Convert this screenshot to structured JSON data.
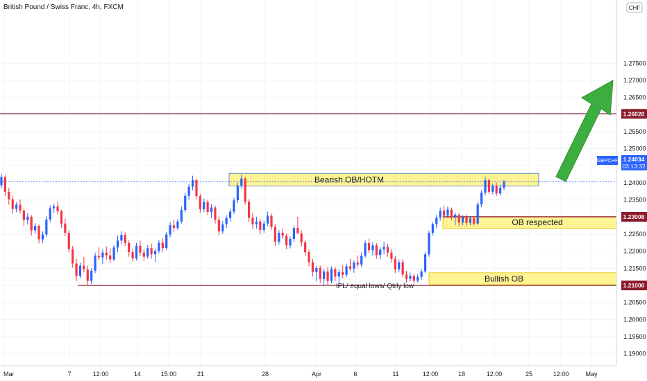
{
  "chart_data": {
    "type": "candlestick",
    "title": "British Pound / Swiss Franc, 4h, FXCM",
    "currency_badge": "CHF",
    "symbol": "GBPCHF",
    "last_price": "1.24034",
    "countdown": "03:13:32",
    "ylim": [
      1.1865,
      1.2935
    ],
    "y_ticks": [
      "1.19000",
      "1.19500",
      "1.20000",
      "1.20500",
      "1.21000",
      "1.21500",
      "1.22000",
      "1.22500",
      "1.23000",
      "1.23500",
      "1.24000",
      "1.24500",
      "1.25000",
      "1.25500",
      "1.26000",
      "1.26500",
      "1.27000",
      "1.27500"
    ],
    "x_ticks": [
      "Mar",
      "7",
      "12:00",
      "14",
      "15:00",
      "21",
      "28",
      "Apr",
      "6",
      "11",
      "12:00",
      "18",
      "12:00",
      "25",
      "12:00",
      "May"
    ],
    "levels": [
      {
        "name": "target-level",
        "value": 1.2602,
        "label": "1.26020"
      },
      {
        "name": "ob-level",
        "value": 1.23008,
        "label": "1.23008"
      },
      {
        "name": "ipl-level",
        "value": 1.21,
        "label": "1.21000"
      }
    ],
    "zones": [
      {
        "name": "bearish-ob",
        "label": "Bearish OB/HOTM",
        "top": 1.2428,
        "bottom": 1.2391
      },
      {
        "name": "ob-respected",
        "label": "OB respected",
        "top": 1.2301,
        "bottom": 1.2267
      },
      {
        "name": "bullish-ob",
        "label": "Bullish OB",
        "top": 1.2137,
        "bottom": 1.2102
      }
    ],
    "annotations": [
      "IPL/ equal lows/ Qtrly low"
    ],
    "colors": {
      "up": "#2962ff",
      "down": "#f23645",
      "zone": "#ffeb3b",
      "level": "#8b1a2b",
      "arrow": "#3cae3f",
      "badge_blue": "#2962ff"
    },
    "candles": [
      [
        1.2393,
        1.2427,
        1.2384,
        1.2417
      ],
      [
        1.2417,
        1.2422,
        1.2361,
        1.2374
      ],
      [
        1.2374,
        1.2386,
        1.2336,
        1.2352
      ],
      [
        1.2352,
        1.2362,
        1.2309,
        1.2324
      ],
      [
        1.2324,
        1.2343,
        1.2314,
        1.2336
      ],
      [
        1.2336,
        1.2351,
        1.2311,
        1.2319
      ],
      [
        1.2319,
        1.2325,
        1.2274,
        1.2291
      ],
      [
        1.2291,
        1.2312,
        1.2278,
        1.2301
      ],
      [
        1.2301,
        1.2306,
        1.2246,
        1.2261
      ],
      [
        1.2261,
        1.2282,
        1.2251,
        1.2274
      ],
      [
        1.2274,
        1.2278,
        1.2223,
        1.2235
      ],
      [
        1.2235,
        1.2258,
        1.2224,
        1.2249
      ],
      [
        1.2249,
        1.2302,
        1.2242,
        1.2293
      ],
      [
        1.2293,
        1.2334,
        1.2285,
        1.2326
      ],
      [
        1.2326,
        1.2339,
        1.2312,
        1.2331
      ],
      [
        1.2331,
        1.2346,
        1.2308,
        1.2317
      ],
      [
        1.2317,
        1.2322,
        1.2269,
        1.2281
      ],
      [
        1.2281,
        1.2296,
        1.2244,
        1.2254
      ],
      [
        1.2254,
        1.2262,
        1.2196,
        1.2206
      ],
      [
        1.2206,
        1.2216,
        1.2152,
        1.2164
      ],
      [
        1.2164,
        1.2178,
        1.2112,
        1.2128
      ],
      [
        1.2128,
        1.2167,
        1.2121,
        1.2158
      ],
      [
        1.2158,
        1.2183,
        1.2138,
        1.2147
      ],
      [
        1.2147,
        1.2158,
        1.2102,
        1.2113
      ],
      [
        1.2113,
        1.2151,
        1.2104,
        1.2143
      ],
      [
        1.2143,
        1.2196,
        1.2136,
        1.2187
      ],
      [
        1.2187,
        1.2212,
        1.2174,
        1.2182
      ],
      [
        1.2182,
        1.2205,
        1.2163,
        1.2196
      ],
      [
        1.2196,
        1.2214,
        1.2176,
        1.2188
      ],
      [
        1.2188,
        1.2209,
        1.2165,
        1.2176
      ],
      [
        1.2176,
        1.2219,
        1.2171,
        1.2211
      ],
      [
        1.2211,
        1.2246,
        1.2197,
        1.2231
      ],
      [
        1.2231,
        1.2258,
        1.2222,
        1.2248
      ],
      [
        1.2248,
        1.2255,
        1.2216,
        1.2224
      ],
      [
        1.2224,
        1.2232,
        1.2184,
        1.2197
      ],
      [
        1.2197,
        1.2208,
        1.2168,
        1.2179
      ],
      [
        1.2179,
        1.2225,
        1.2173,
        1.2216
      ],
      [
        1.2216,
        1.2231,
        1.2186,
        1.2196
      ],
      [
        1.2196,
        1.2207,
        1.2172,
        1.2184
      ],
      [
        1.2184,
        1.2218,
        1.2178,
        1.2209
      ],
      [
        1.2209,
        1.2222,
        1.2178,
        1.2191
      ],
      [
        1.2191,
        1.2208,
        1.2168,
        1.2201
      ],
      [
        1.2201,
        1.2232,
        1.2194,
        1.2225
      ],
      [
        1.2225,
        1.2237,
        1.2198,
        1.2209
      ],
      [
        1.2209,
        1.2257,
        1.2203,
        1.2249
      ],
      [
        1.2249,
        1.2286,
        1.2241,
        1.2276
      ],
      [
        1.2276,
        1.2293,
        1.2257,
        1.2268
      ],
      [
        1.2268,
        1.2295,
        1.2262,
        1.2287
      ],
      [
        1.2287,
        1.2331,
        1.2281,
        1.2321
      ],
      [
        1.2321,
        1.2371,
        1.2314,
        1.2362
      ],
      [
        1.2362,
        1.2397,
        1.2351,
        1.2389
      ],
      [
        1.2389,
        1.2421,
        1.2378,
        1.2408
      ],
      [
        1.2408,
        1.2412,
        1.2352,
        1.2361
      ],
      [
        1.2361,
        1.2368,
        1.2312,
        1.2323
      ],
      [
        1.2323,
        1.2354,
        1.2315,
        1.2344
      ],
      [
        1.2344,
        1.2351,
        1.2306,
        1.2315
      ],
      [
        1.2315,
        1.2338,
        1.2297,
        1.2328
      ],
      [
        1.2328,
        1.2334,
        1.2281,
        1.2292
      ],
      [
        1.2292,
        1.2302,
        1.2247,
        1.2258
      ],
      [
        1.2258,
        1.2288,
        1.2251,
        1.2279
      ],
      [
        1.2279,
        1.2305,
        1.2268,
        1.2297
      ],
      [
        1.2297,
        1.2324,
        1.2286,
        1.2316
      ],
      [
        1.2316,
        1.2357,
        1.2309,
        1.2349
      ],
      [
        1.2349,
        1.2401,
        1.2341,
        1.2392
      ],
      [
        1.2392,
        1.2424,
        1.2383,
        1.2413
      ],
      [
        1.2413,
        1.2417,
        1.2336,
        1.2345
      ],
      [
        1.2345,
        1.2352,
        1.2286,
        1.2298
      ],
      [
        1.2298,
        1.2312,
        1.2264,
        1.2279
      ],
      [
        1.2279,
        1.2301,
        1.2266,
        1.2287
      ],
      [
        1.2287,
        1.2294,
        1.2249,
        1.2262
      ],
      [
        1.2262,
        1.2289,
        1.2254,
        1.2281
      ],
      [
        1.2281,
        1.2316,
        1.2273,
        1.2304
      ],
      [
        1.2304,
        1.2311,
        1.2262,
        1.2271
      ],
      [
        1.2271,
        1.2279,
        1.2216,
        1.2228
      ],
      [
        1.2228,
        1.2262,
        1.2219,
        1.2254
      ],
      [
        1.2254,
        1.2267,
        1.2236,
        1.2245
      ],
      [
        1.2245,
        1.2252,
        1.2206,
        1.2217
      ],
      [
        1.2217,
        1.2243,
        1.2208,
        1.2236
      ],
      [
        1.2236,
        1.2276,
        1.2228,
        1.2268
      ],
      [
        1.2268,
        1.2301,
        1.2259,
        1.2252
      ],
      [
        1.2252,
        1.2261,
        1.2214,
        1.2226
      ],
      [
        1.2226,
        1.2233,
        1.2186,
        1.2197
      ],
      [
        1.2197,
        1.2206,
        1.2156,
        1.2168
      ],
      [
        1.2168,
        1.2177,
        1.2126,
        1.2139
      ],
      [
        1.2139,
        1.2157,
        1.2112,
        1.2151
      ],
      [
        1.2151,
        1.2158,
        1.2107,
        1.2119
      ],
      [
        1.2119,
        1.2148,
        1.2101,
        1.2141
      ],
      [
        1.2141,
        1.2153,
        1.2102,
        1.2113
      ],
      [
        1.2113,
        1.2156,
        1.2106,
        1.2148
      ],
      [
        1.2148,
        1.2154,
        1.2114,
        1.2126
      ],
      [
        1.2126,
        1.2147,
        1.2108,
        1.2139
      ],
      [
        1.2139,
        1.2159,
        1.2121,
        1.2131
      ],
      [
        1.2131,
        1.2164,
        1.2124,
        1.2156
      ],
      [
        1.2156,
        1.2178,
        1.2142,
        1.2149
      ],
      [
        1.2149,
        1.2173,
        1.2137,
        1.2167
      ],
      [
        1.2167,
        1.2188,
        1.2152,
        1.2161
      ],
      [
        1.2161,
        1.2196,
        1.2154,
        1.2187
      ],
      [
        1.2187,
        1.2232,
        1.2181,
        1.2224
      ],
      [
        1.2224,
        1.2237,
        1.2194,
        1.2203
      ],
      [
        1.2203,
        1.2226,
        1.2188,
        1.2217
      ],
      [
        1.2217,
        1.2224,
        1.2178,
        1.2189
      ],
      [
        1.2189,
        1.2211,
        1.2176,
        1.2205
      ],
      [
        1.2205,
        1.2228,
        1.2191,
        1.2213
      ],
      [
        1.2213,
        1.2222,
        1.2184,
        1.2196
      ],
      [
        1.2196,
        1.2206,
        1.2167,
        1.2178
      ],
      [
        1.2178,
        1.2186,
        1.2136,
        1.2147
      ],
      [
        1.2147,
        1.2176,
        1.2138,
        1.2168
      ],
      [
        1.2168,
        1.2177,
        1.2124,
        1.2132
      ],
      [
        1.2132,
        1.2143,
        1.2108,
        1.2119
      ],
      [
        1.2119,
        1.2137,
        1.2112,
        1.2128
      ],
      [
        1.2128,
        1.2135,
        1.2106,
        1.2114
      ],
      [
        1.2114,
        1.2134,
        1.2109,
        1.2125
      ],
      [
        1.2125,
        1.2148,
        1.2116,
        1.2141
      ],
      [
        1.2141,
        1.2198,
        1.2136,
        1.2191
      ],
      [
        1.2191,
        1.2261,
        1.2184,
        1.2254
      ],
      [
        1.2254,
        1.2286,
        1.2246,
        1.2279
      ],
      [
        1.2279,
        1.2306,
        1.2267,
        1.2298
      ],
      [
        1.2298,
        1.2328,
        1.2289,
        1.2319
      ],
      [
        1.2319,
        1.2333,
        1.2296,
        1.2304
      ],
      [
        1.2304,
        1.2331,
        1.2297,
        1.2322
      ],
      [
        1.2322,
        1.2328,
        1.2291,
        1.2298
      ],
      [
        1.2298,
        1.2313,
        1.2276,
        1.2307
      ],
      [
        1.2307,
        1.2312,
        1.2273,
        1.2284
      ],
      [
        1.2284,
        1.2306,
        1.2276,
        1.2301
      ],
      [
        1.2301,
        1.2307,
        1.2274,
        1.2283
      ],
      [
        1.2283,
        1.2303,
        1.2276,
        1.2296
      ],
      [
        1.2296,
        1.2304,
        1.2274,
        1.2281
      ],
      [
        1.2281,
        1.2344,
        1.2277,
        1.2337
      ],
      [
        1.2337,
        1.2378,
        1.2329,
        1.2371
      ],
      [
        1.2371,
        1.2418,
        1.2364,
        1.2408
      ],
      [
        1.2408,
        1.2412,
        1.2367,
        1.2374
      ],
      [
        1.2374,
        1.2398,
        1.2366,
        1.2391
      ],
      [
        1.2391,
        1.2401,
        1.2362,
        1.2369
      ],
      [
        1.2369,
        1.2394,
        1.2363,
        1.2386
      ],
      [
        1.2386,
        1.2409,
        1.2378,
        1.2403
      ]
    ]
  }
}
